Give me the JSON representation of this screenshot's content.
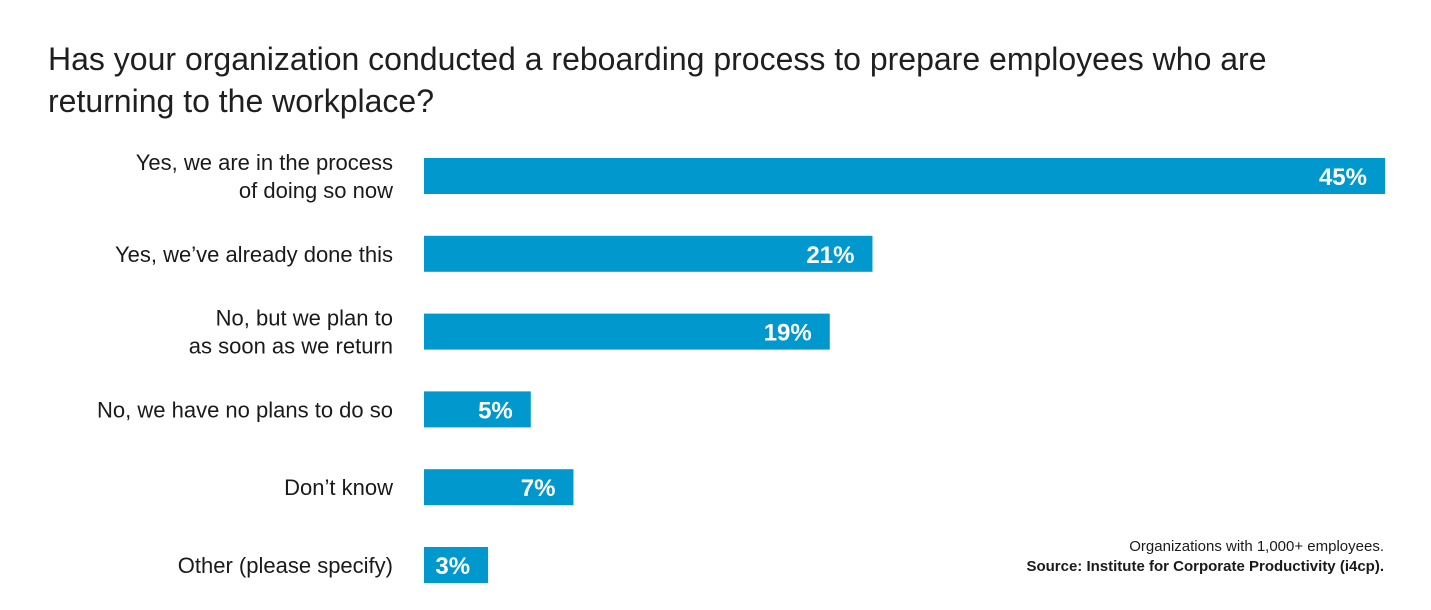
{
  "title": "Has your organization conducted a reboarding process to prepare employees who are returning to the workplace?",
  "note": "Organizations with 1,000+ employees.",
  "source": "Source: Institute for Corporate Productivity (i4cp).",
  "colors": {
    "bar": "#0198CD",
    "bar_label": "#ffffff",
    "text": "#1a1a1a"
  },
  "chart_data": {
    "type": "bar",
    "orientation": "horizontal",
    "title": "Has your organization conducted a reboarding process to prepare employees who are returning to the workplace?",
    "categories": [
      [
        "Yes, we are in the process",
        "of doing so now"
      ],
      [
        "Yes, we’ve already done this"
      ],
      [
        "No, but we plan to",
        "as soon as we return"
      ],
      [
        "No, we have no plans to do so"
      ],
      [
        "Don’t know"
      ],
      [
        "Other (please specify)"
      ]
    ],
    "values": [
      45,
      21,
      19,
      5,
      7,
      3
    ],
    "value_labels": [
      "45%",
      "21%",
      "19%",
      "5%",
      "7%",
      "3%"
    ],
    "unit": "%",
    "xlim": [
      0,
      45
    ],
    "grid": false,
    "legend": "none"
  }
}
